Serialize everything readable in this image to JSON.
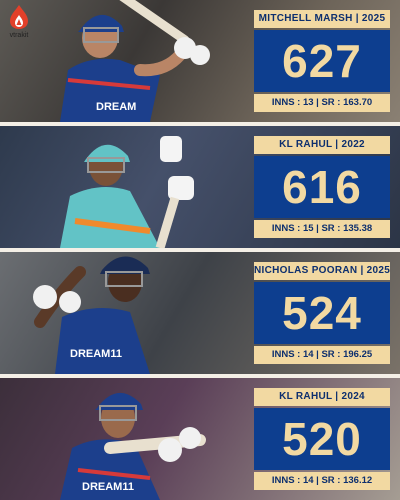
{
  "brand": {
    "name": "vtrakit",
    "color": "#e2402a"
  },
  "colors": {
    "card_blue": "#0d3e8f",
    "card_gold": "#f2d9a2"
  },
  "records": [
    {
      "heading": "MITCHELL MARSH | 2025",
      "runs": "627",
      "stats": "INNS : 13 | SR : 163.70"
    },
    {
      "heading": "KL RAHUL | 2022",
      "runs": "616",
      "stats": "INNS : 15 | SR : 135.38"
    },
    {
      "heading": "NICHOLAS POORAN | 2025",
      "runs": "524",
      "stats": "INNS : 14 | SR : 196.25"
    },
    {
      "heading": "KL RAHUL | 2024",
      "runs": "520",
      "stats": "INNS : 14 | SR : 136.12"
    }
  ],
  "jersey_text": [
    "DREAM",
    "DREAM11",
    "DREAM11"
  ]
}
